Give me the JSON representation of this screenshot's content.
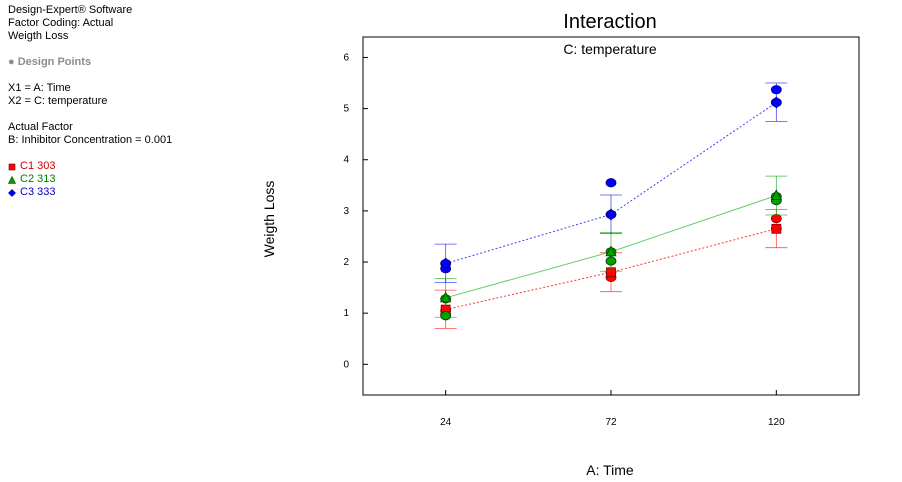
{
  "info": {
    "software": "Design-Expert® Software",
    "factor_coding": "Factor Coding: Actual",
    "response": "Weigth Loss",
    "design_points": "Design Points",
    "x1": "X1 = A: Time",
    "x2": "X2 = C: temperature",
    "actual_factor_heading": "Actual Factor",
    "actual_factor_value": "B: Inhibitor Concentration = 0.001"
  },
  "legend": [
    {
      "label": "C1 303",
      "color": "#ff0000",
      "marker": "square"
    },
    {
      "label": "C2 313",
      "color": "#00a000",
      "marker": "triangle"
    },
    {
      "label": "C3 333",
      "color": "#0000ff",
      "marker": "diamond"
    }
  ],
  "chart_data": {
    "type": "line",
    "title": "Interaction",
    "subtitle": "C: temperature",
    "xlabel": "A: Time",
    "ylabel": "Weigth Loss",
    "x": [
      24,
      72,
      120
    ],
    "xlim": [
      0,
      144
    ],
    "ylim": [
      -0.6,
      6.4
    ],
    "yticks": [
      0,
      1,
      2,
      3,
      4,
      5,
      6
    ],
    "series": [
      {
        "name": "C1 303",
        "color": "#ff0000",
        "values": [
          1.07,
          1.8,
          2.65
        ],
        "lsd_low": [
          0.7,
          1.42,
          2.28
        ],
        "lsd_high": [
          1.45,
          2.18,
          3.03
        ],
        "design_points": [
          [
            24,
            1.05
          ],
          [
            24,
            0.97
          ],
          [
            72,
            1.8
          ],
          [
            72,
            1.7
          ],
          [
            120,
            2.85
          ],
          [
            120,
            2.65
          ]
        ]
      },
      {
        "name": "C2 313",
        "color": "#00a000",
        "values": [
          1.3,
          2.2,
          3.3
        ],
        "lsd_low": [
          0.92,
          1.82,
          2.92
        ],
        "lsd_high": [
          1.68,
          2.58,
          3.68
        ],
        "design_points": [
          [
            24,
            1.28
          ],
          [
            24,
            0.95
          ],
          [
            72,
            2.2
          ],
          [
            72,
            2.02
          ],
          [
            120,
            3.28
          ],
          [
            120,
            3.2
          ]
        ]
      },
      {
        "name": "C3 333",
        "color": "#0000ff",
        "values": [
          1.97,
          2.93,
          5.12
        ],
        "lsd_low": [
          1.6,
          2.56,
          4.75
        ],
        "lsd_high": [
          2.35,
          3.31,
          5.5
        ],
        "design_points": [
          [
            24,
            1.97
          ],
          [
            24,
            1.87
          ],
          [
            72,
            3.55
          ],
          [
            72,
            2.93
          ],
          [
            120,
            5.37
          ],
          [
            120,
            5.12
          ]
        ]
      }
    ]
  }
}
